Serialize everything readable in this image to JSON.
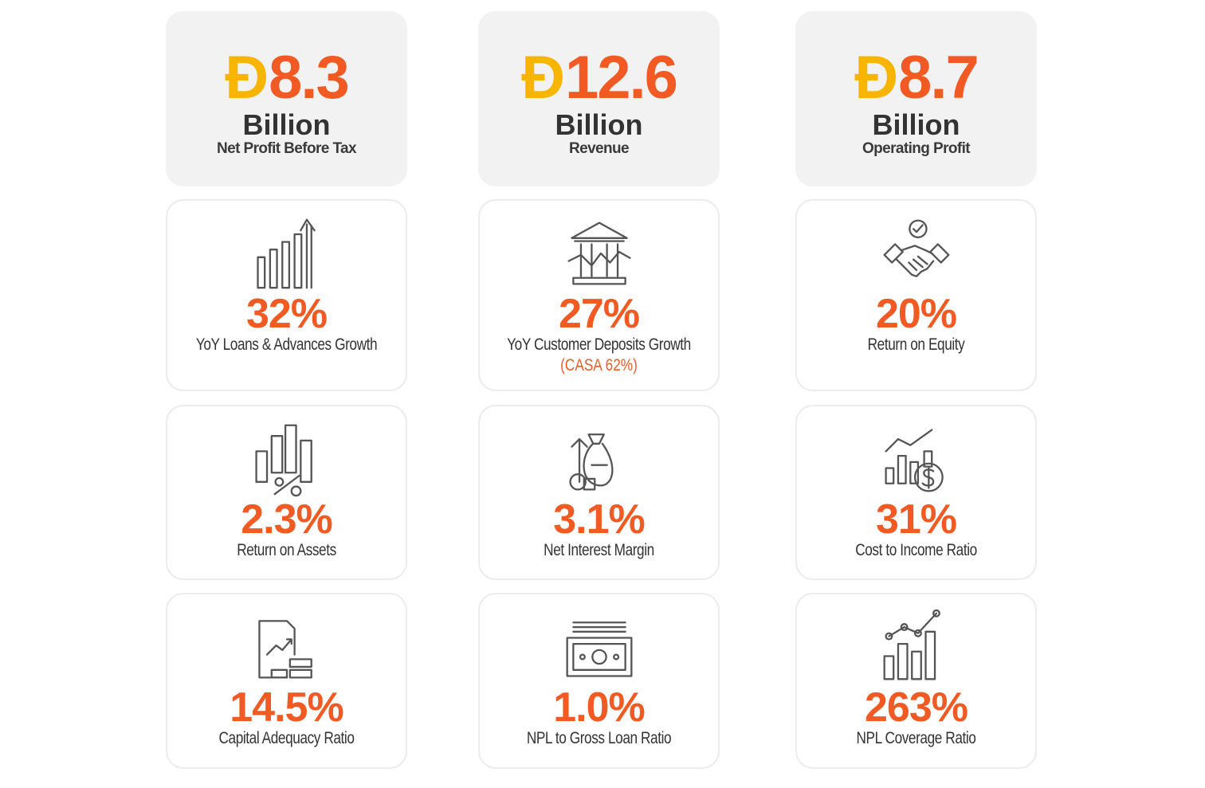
{
  "summary_cards": [
    {
      "symbol": "Đ",
      "value": "8.3",
      "unit": "Billion",
      "label": "Net Profit Before Tax"
    },
    {
      "symbol": "Đ",
      "value": "12.6",
      "unit": "Billion",
      "label": "Revenue"
    },
    {
      "symbol": "Đ",
      "value": "8.7",
      "unit": "Billion",
      "label": "Operating Profit"
    }
  ],
  "metric_cards": [
    {
      "value": "32%",
      "label": "YoY Loans & Advances Growth"
    },
    {
      "value": "27%",
      "label": "YoY Customer Deposits Growth",
      "note": "(CASA 62%)"
    },
    {
      "value": "20%",
      "label": "Return on Equity"
    },
    {
      "value": "2.3%",
      "label": "Return on Assets"
    },
    {
      "value": "3.1%",
      "label": "Net Interest Margin"
    },
    {
      "value": "31%",
      "label": "Cost to Income Ratio"
    },
    {
      "value": "14.5%",
      "label": "Capital Adequacy Ratio"
    },
    {
      "value": "1.0%",
      "label": "NPL to Gross Loan Ratio"
    },
    {
      "value": "263%",
      "label": "NPL Coverage Ratio"
    }
  ]
}
